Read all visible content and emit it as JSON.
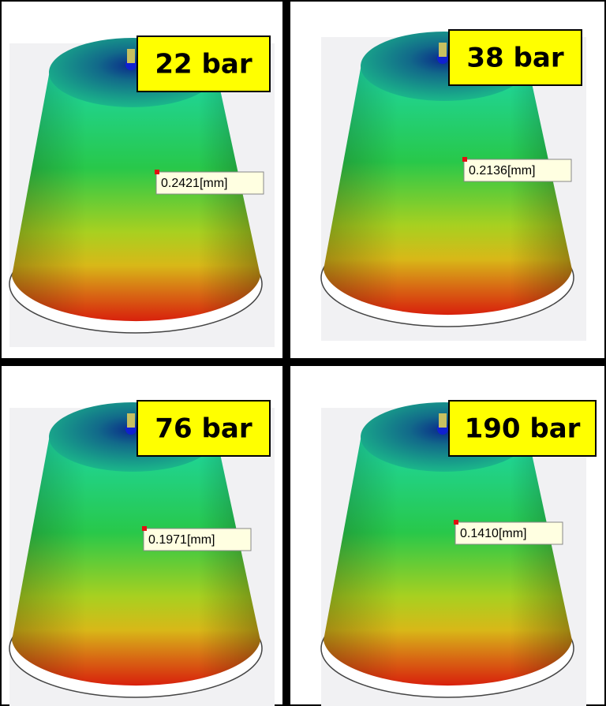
{
  "panels": [
    {
      "label": "22 bar",
      "measurement": "0.2421[mm]"
    },
    {
      "label": "38 bar",
      "measurement": "0.2136[mm]"
    },
    {
      "label": "76 bar",
      "measurement": "0.1971[mm]"
    },
    {
      "label": "190 bar",
      "measurement": "0.1410[mm]"
    }
  ]
}
